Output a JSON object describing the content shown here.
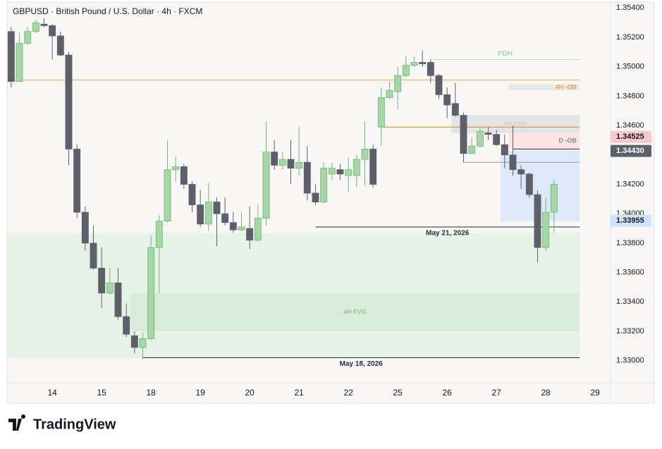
{
  "chart_data": {
    "type": "candlestick",
    "title": "GBPUSD · British Pound / U.S. Dollar · 4h · FXCM",
    "categories": [
      null,
      null,
      null,
      null,
      null,
      "14",
      null,
      null,
      null,
      null,
      null,
      "15",
      null,
      null,
      null,
      null,
      null,
      "18",
      null,
      null,
      null,
      null,
      null,
      "19",
      null,
      null,
      null,
      null,
      null,
      "20",
      null,
      null,
      null,
      null,
      null,
      "21",
      null,
      null,
      null,
      null,
      null,
      "22",
      null,
      null,
      null,
      null,
      null,
      "25",
      null,
      null,
      null,
      null,
      null,
      "26",
      null,
      null,
      null,
      null,
      null,
      "27",
      null,
      null,
      null,
      null,
      null,
      "28",
      null,
      null,
      null,
      null,
      null,
      "29"
    ],
    "open": [
      1.3524,
      1.349,
      1.3516,
      1.3524,
      1.3529,
      1.3528,
      1.3521,
      1.3508,
      1.3444,
      1.3401,
      1.338,
      1.3363,
      1.3346,
      1.3353,
      1.333,
      1.3317,
      1.3309,
      1.3315,
      1.3377,
      1.3395,
      1.343,
      1.3432,
      1.342,
      1.3406,
      1.3393,
      1.3408,
      1.34,
      1.3394,
      1.3389,
      1.339,
      1.3382,
      1.3397,
      1.3442,
      1.3433,
      1.3437,
      1.3431,
      1.3435,
      1.3414,
      1.3408,
      1.3427,
      1.343,
      1.3426,
      1.3426,
      1.3437,
      1.3444,
      1.3459,
      1.3479,
      1.3483,
      1.3494,
      1.3501,
      1.3503,
      1.3503,
      1.3494,
      1.3481,
      1.3475,
      1.3467,
      1.3441,
      1.3446,
      1.3455,
      1.3454,
      1.3447,
      1.344,
      1.343,
      1.3427,
      1.3413,
      1.3377,
      1.3401,
      null,
      null,
      null,
      null,
      null
    ],
    "high": [
      1.3527,
      1.3523,
      1.3527,
      1.3532,
      1.3533,
      1.3529,
      1.3524,
      1.351,
      1.3447,
      1.3405,
      1.3392,
      1.3377,
      1.3363,
      1.3363,
      1.3339,
      1.332,
      1.3319,
      1.3385,
      1.3399,
      1.345,
      1.3439,
      1.3434,
      1.3422,
      1.3416,
      1.3421,
      1.3411,
      1.3411,
      1.3401,
      1.3401,
      1.3405,
      1.3406,
      1.3463,
      1.345,
      1.3442,
      1.345,
      1.3459,
      1.3446,
      1.342,
      1.3435,
      1.3435,
      1.3434,
      1.3438,
      1.344,
      1.3463,
      1.3447,
      1.3486,
      1.349,
      1.35,
      1.3507,
      1.3507,
      1.3511,
      1.3505,
      1.3495,
      1.3486,
      1.3489,
      1.3469,
      1.3452,
      1.3458,
      1.3459,
      1.3457,
      1.3454,
      1.346,
      1.3433,
      1.3428,
      1.3416,
      1.3411,
      1.3423,
      null,
      null,
      null,
      null,
      null
    ],
    "low": [
      1.3486,
      1.349,
      1.3515,
      1.3523,
      1.3527,
      1.3505,
      1.3507,
      1.3433,
      1.3397,
      1.3375,
      1.3362,
      1.3336,
      1.3345,
      1.3328,
      1.3316,
      1.3305,
      1.3301,
      1.3314,
      1.3346,
      1.3394,
      1.3422,
      1.3417,
      1.3401,
      1.3391,
      1.3388,
      1.3378,
      1.3392,
      1.3387,
      1.3388,
      1.3376,
      1.3381,
      1.3392,
      1.343,
      1.343,
      1.342,
      1.3426,
      1.3409,
      1.3406,
      1.3407,
      1.3423,
      1.3423,
      1.3415,
      1.3418,
      1.3419,
      1.3418,
      1.3446,
      1.3478,
      1.3471,
      1.3493,
      1.35,
      1.35,
      1.3489,
      1.3478,
      1.3465,
      1.3466,
      1.3435,
      1.3441,
      1.3445,
      1.345,
      1.3446,
      1.3431,
      1.3426,
      1.3417,
      1.3411,
      1.3367,
      1.3375,
      1.3387,
      null,
      null,
      null,
      null,
      null
    ],
    "close": [
      1.349,
      1.3516,
      1.3524,
      1.353,
      1.3528,
      1.3521,
      1.3508,
      1.3444,
      1.3401,
      1.338,
      1.3363,
      1.3346,
      1.3353,
      1.333,
      1.3318,
      1.3309,
      1.3315,
      1.3377,
      1.3395,
      1.343,
      1.3432,
      1.342,
      1.3406,
      1.3393,
      1.3408,
      1.34,
      1.3394,
      1.3389,
      1.3391,
      1.3382,
      1.3397,
      1.3442,
      1.3433,
      1.3437,
      1.3431,
      1.3435,
      1.3414,
      1.3408,
      1.3431,
      1.3431,
      1.3427,
      1.343,
      1.3437,
      1.3444,
      1.342,
      1.3479,
      1.3484,
      1.3494,
      1.3501,
      1.3503,
      1.3502,
      1.3494,
      1.3481,
      1.3474,
      1.3467,
      1.3441,
      1.3446,
      1.3456,
      1.3454,
      1.3447,
      1.344,
      1.343,
      1.3427,
      1.3413,
      1.3377,
      1.3401,
      1.342,
      null,
      null,
      null,
      null,
      null
    ],
    "up_color": "#a5d6a7",
    "up_border": "#6fb873",
    "down_color": "#5d606b",
    "ylim": [
      1.3285,
      1.3544
    ],
    "yticks": [
      {
        "value": 1.354,
        "label": "1.35400"
      },
      {
        "value": 1.352,
        "label": "1.35200"
      },
      {
        "value": 1.35,
        "label": "1.35000"
      },
      {
        "value": 1.348,
        "label": "1.34800"
      },
      {
        "value": 1.346,
        "label": "1.34600"
      },
      {
        "value": 1.344,
        "label": "1.34400"
      },
      {
        "value": 1.342,
        "label": "1.34200"
      },
      {
        "value": 1.34,
        "label": "1.34000"
      },
      {
        "value": 1.338,
        "label": "1.33800"
      },
      {
        "value": 1.336,
        "label": "1.33600"
      },
      {
        "value": 1.334,
        "label": "1.33400"
      },
      {
        "value": 1.332,
        "label": "1.33200"
      },
      {
        "value": 1.33,
        "label": "1.33000"
      }
    ],
    "grid": false,
    "price_labels": [
      {
        "value": 1.34525,
        "label": "1.34525",
        "color": "#f9c9cc",
        "text_color": "#131722"
      },
      {
        "value": 1.3443,
        "label": "1.34430",
        "color": "#5d606b",
        "text_color": "#ffffff"
      },
      {
        "value": 1.33955,
        "label": "1.33955",
        "color": "#cfe1fb",
        "text_color": "#131722"
      }
    ],
    "zones": [
      {
        "top": 1.3387,
        "bottom": 1.3302,
        "from": 0,
        "color": "#e6f2e6"
      },
      {
        "top": 1.3346,
        "bottom": 1.332,
        "from": 15,
        "color": "#d9ecd9",
        "label": "4H FVG",
        "label_color": "#8fc89a"
      },
      {
        "top": 1.3488,
        "bottom": 1.3484,
        "from": 61,
        "color": "#e8e8e8",
        "label": "4H -OB",
        "label_color": "#f5a04a"
      },
      {
        "top": 1.3467,
        "bottom": 1.3455,
        "from": 54,
        "color": "#e4e4e4",
        "label": "4H FVG",
        "label_color": "#d2d2d2"
      },
      {
        "top": 1.3455,
        "bottom": 1.3444,
        "from": 61,
        "color": "#fde3e4",
        "label": "D -OB",
        "label_color": "#8a8a8a"
      },
      {
        "top": 1.3443,
        "bottom": 1.3395,
        "from": 60,
        "color": "#dde9f8"
      }
    ],
    "levels": [
      {
        "value": 1.3491,
        "from": 0,
        "color": "#f7a94a"
      },
      {
        "value": 1.3459,
        "from": 45,
        "color": "#c58a35"
      },
      {
        "value": 1.3505,
        "from": 51,
        "color": "#b9d9bf",
        "label": "PDH"
      },
      {
        "value": 1.3435,
        "from": 55,
        "color": "#9a9a9a"
      },
      {
        "value": 1.3444,
        "from": 61,
        "color": "#2a2e39"
      },
      {
        "value": 1.3391,
        "from": 37,
        "color": "#2a2e39",
        "label": "May 21, 2026"
      },
      {
        "value": 1.3302,
        "from": 16,
        "color": "#2a2e39",
        "label": "May 18, 2026"
      }
    ]
  },
  "logo": "TradingView"
}
